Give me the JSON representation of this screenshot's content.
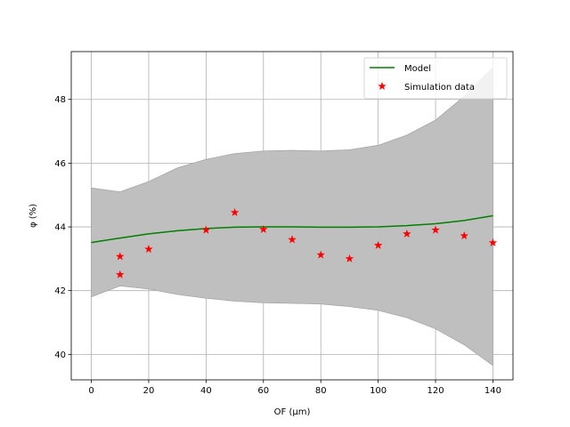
{
  "chart_data": {
    "type": "line",
    "title": "",
    "xlabel": "OF (μm)",
    "ylabel": "φ (%)",
    "xlim": [
      -7,
      147
    ],
    "ylim": [
      39.2,
      49.5
    ],
    "xticks": [
      0,
      20,
      40,
      60,
      80,
      100,
      120,
      140
    ],
    "yticks": [
      40,
      42,
      44,
      46,
      48
    ],
    "grid": true,
    "legend_position": "top-right",
    "colors": {
      "model": "#008000",
      "simulation": "#ff0000",
      "band_fill": "#bfbfbf",
      "band_edge": "#a6a6a6",
      "grid": "#b0b0b0"
    },
    "series": [
      {
        "name": "Model",
        "kind": "line",
        "x": [
          0,
          10,
          20,
          30,
          40,
          50,
          60,
          70,
          80,
          90,
          100,
          110,
          120,
          130,
          140
        ],
        "y": [
          43.51,
          43.65,
          43.78,
          43.88,
          43.95,
          43.99,
          44.0,
          44.0,
          43.99,
          43.99,
          44.0,
          44.04,
          44.1,
          44.2,
          44.35
        ]
      },
      {
        "name": "Simulation data",
        "kind": "scatter",
        "x": [
          10,
          10,
          20,
          40,
          50,
          60,
          70,
          80,
          90,
          100,
          110,
          120,
          130,
          140
        ],
        "y": [
          43.07,
          42.5,
          43.3,
          43.9,
          44.45,
          43.92,
          43.6,
          43.12,
          43.0,
          43.42,
          43.78,
          43.9,
          43.72,
          43.5
        ]
      }
    ],
    "confidence_band": {
      "x": [
        0,
        10,
        20,
        30,
        40,
        50,
        60,
        70,
        80,
        90,
        100,
        110,
        120,
        130,
        140
      ],
      "upper": [
        45.22,
        45.1,
        45.42,
        45.85,
        46.12,
        46.3,
        46.38,
        46.4,
        46.38,
        46.42,
        46.56,
        46.88,
        47.35,
        48.1,
        49.0
      ],
      "lower": [
        41.8,
        42.15,
        42.05,
        41.88,
        41.76,
        41.67,
        41.62,
        41.6,
        41.58,
        41.5,
        41.38,
        41.15,
        40.8,
        40.3,
        39.65
      ]
    }
  }
}
